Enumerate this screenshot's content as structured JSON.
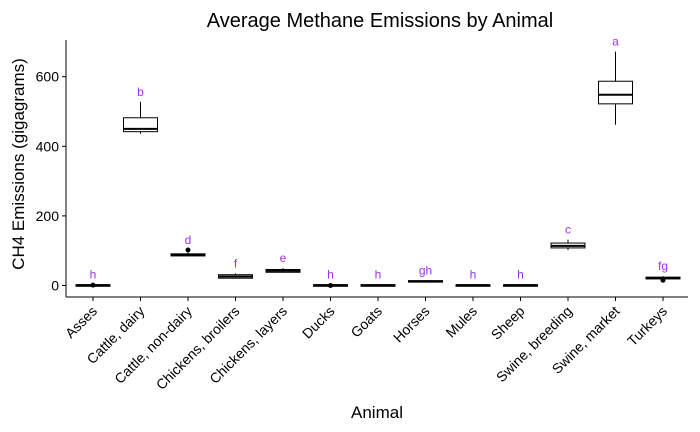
{
  "chart_data": {
    "type": "box",
    "title": "Average Methane Emissions by Animal",
    "xlabel": "Animal",
    "ylabel": "CH4 Emissions (gigagrams)",
    "ylim": [
      -35,
      700
    ],
    "yticks": [
      0,
      200,
      400,
      600
    ],
    "letter_color": "#9933ee",
    "categories": [
      "Asses",
      "Cattle, dairy",
      "Cattle, non-dairy",
      "Chickens, broilers",
      "Chickens, layers",
      "Ducks",
      "Goats",
      "Horses",
      "Mules",
      "Sheep",
      "Swine, breeding",
      "Swine, market",
      "Turkeys"
    ],
    "boxes": [
      {
        "category": "Asses",
        "min": 0,
        "q1": 0,
        "median": 1,
        "q3": 2,
        "max": 3,
        "outliers": [
          1
        ],
        "letter": "h"
      },
      {
        "category": "Cattle, dairy",
        "min": 436,
        "q1": 442,
        "median": 450,
        "q3": 482,
        "max": 528,
        "outliers": [],
        "letter": "b"
      },
      {
        "category": "Cattle, non-dairy",
        "min": 85,
        "q1": 85,
        "median": 88,
        "q3": 91,
        "max": 94,
        "outliers": [
          102
        ],
        "letter": "d"
      },
      {
        "category": "Chickens, broilers",
        "min": 20,
        "q1": 21,
        "median": 26,
        "q3": 31,
        "max": 35,
        "outliers": [],
        "letter": "f"
      },
      {
        "category": "Chickens, layers",
        "min": 37,
        "q1": 38,
        "median": 42,
        "q3": 46,
        "max": 50,
        "outliers": [],
        "letter": "e"
      },
      {
        "category": "Ducks",
        "min": 0,
        "q1": 0,
        "median": 1,
        "q3": 2,
        "max": 3,
        "outliers": [
          0
        ],
        "letter": "h"
      },
      {
        "category": "Goats",
        "min": 0,
        "q1": 0,
        "median": 1,
        "q3": 2,
        "max": 3,
        "outliers": [],
        "letter": "h"
      },
      {
        "category": "Horses",
        "min": 10,
        "q1": 10,
        "median": 12,
        "q3": 14,
        "max": 15,
        "outliers": [],
        "letter": "gh"
      },
      {
        "category": "Mules",
        "min": 0,
        "q1": 0,
        "median": 1,
        "q3": 2,
        "max": 3,
        "outliers": [],
        "letter": "h"
      },
      {
        "category": "Sheep",
        "min": 0,
        "q1": 0,
        "median": 1,
        "q3": 2,
        "max": 3,
        "outliers": [],
        "letter": "h"
      },
      {
        "category": "Swine, breeding",
        "min": 102,
        "q1": 108,
        "median": 114,
        "q3": 122,
        "max": 132,
        "outliers": [],
        "letter": "c"
      },
      {
        "category": "Swine, market",
        "min": 462,
        "q1": 522,
        "median": 548,
        "q3": 587,
        "max": 672,
        "outliers": [],
        "letter": "a"
      },
      {
        "category": "Turkeys",
        "min": 18,
        "q1": 19,
        "median": 21,
        "q3": 24,
        "max": 27,
        "outliers": [
          15
        ],
        "letter": "fg"
      }
    ]
  }
}
